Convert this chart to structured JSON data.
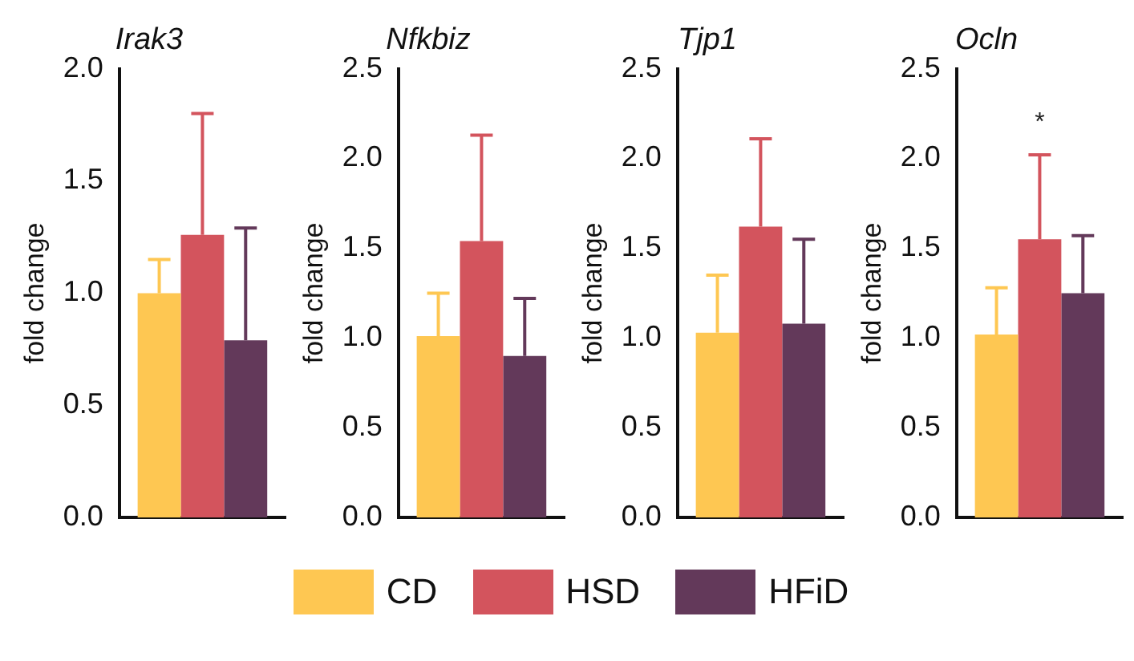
{
  "chart_data": [
    {
      "type": "bar",
      "title": "Irak3",
      "ylabel": "fold change",
      "categories": [
        null
      ],
      "ylim": [
        0,
        2
      ],
      "yticks": [
        {
          "value": 0,
          "label": "0.0"
        },
        {
          "value": 0.5,
          "label": "0.5"
        },
        {
          "value": 1,
          "label": "1.0"
        },
        {
          "value": 1.5,
          "label": "1.5"
        },
        {
          "value": 2,
          "label": "2.0"
        }
      ],
      "grid": false,
      "legend": "bottom",
      "series": [
        {
          "name": "CD",
          "color": "#fec752",
          "values": [
            1.0
          ],
          "errors": [
            [
              1.0,
              1.15
            ]
          ]
        },
        {
          "name": "HSD",
          "color": "#d3545d",
          "values": [
            1.26
          ],
          "errors": [
            [
              1.26,
              1.8
            ]
          ]
        },
        {
          "name": "HFiD",
          "color": "#63395a",
          "values": [
            0.79
          ],
          "errors": [
            [
              0.79,
              1.29
            ]
          ]
        }
      ]
    },
    {
      "type": "bar",
      "title": "Nfkbiz",
      "ylabel": "fold change",
      "categories": [
        null
      ],
      "ylim": [
        0,
        2.5
      ],
      "yticks": [
        {
          "value": 0,
          "label": "0.0"
        },
        {
          "value": 0.5,
          "label": "0.5"
        },
        {
          "value": 1,
          "label": "1.0"
        },
        {
          "value": 1.5,
          "label": "1.5"
        },
        {
          "value": 2,
          "label": "2.0"
        },
        {
          "value": 2.5,
          "label": "2.5"
        }
      ],
      "grid": false,
      "series": [
        {
          "color": "#fec752",
          "values": [
            1.01
          ],
          "errors": [
            [
              1.01,
              1.25
            ]
          ]
        },
        {
          "color": "#d3545d",
          "values": [
            1.54
          ],
          "errors": [
            [
              1.54,
              2.13
            ]
          ]
        },
        {
          "color": "#63395a",
          "values": [
            0.9
          ],
          "errors": [
            [
              0.9,
              1.22
            ]
          ]
        }
      ]
    },
    {
      "type": "bar",
      "title": "Tjp1",
      "ylabel": "fold change",
      "categories": [
        null
      ],
      "ylim": [
        0,
        2.5
      ],
      "yticks": [
        {
          "value": 0,
          "label": "0.0"
        },
        {
          "value": 0.5,
          "label": "0.5"
        },
        {
          "value": 1,
          "label": "1.0"
        },
        {
          "value": 1.5,
          "label": "1.5"
        },
        {
          "value": 2,
          "label": "2.0"
        },
        {
          "value": 2.5,
          "label": "2.5"
        }
      ],
      "grid": false,
      "series": [
        {
          "color": "#fec752",
          "values": [
            1.03
          ],
          "errors": [
            [
              1.03,
              1.35
            ]
          ]
        },
        {
          "color": "#d3545d",
          "values": [
            1.62
          ],
          "errors": [
            [
              1.62,
              2.11
            ]
          ]
        },
        {
          "color": "#63395a",
          "values": [
            1.08
          ],
          "errors": [
            [
              1.08,
              1.55
            ]
          ]
        }
      ]
    },
    {
      "type": "bar",
      "title": "Ocln",
      "ylabel": "fold change",
      "categories": [
        null
      ],
      "ylim": [
        0,
        2.5
      ],
      "yticks": [
        {
          "value": 0,
          "label": "0.0"
        },
        {
          "value": 0.5,
          "label": "0.5"
        },
        {
          "value": 1,
          "label": "1.0"
        },
        {
          "value": 1.5,
          "label": "1.5"
        },
        {
          "value": 2,
          "label": "2.0"
        },
        {
          "value": 2.5,
          "label": "2.5"
        }
      ],
      "grid": false,
      "annotations": [
        "*"
      ],
      "series": [
        {
          "color": "#fec752",
          "values": [
            1.02
          ],
          "errors": [
            [
              1.02,
              1.28
            ]
          ]
        },
        {
          "color": "#d3545d",
          "values": [
            1.55
          ],
          "errors": [
            [
              1.55,
              2.02
            ]
          ]
        },
        {
          "color": "#63395a",
          "values": [
            1.25
          ],
          "errors": [
            [
              1.25,
              1.57
            ]
          ]
        }
      ]
    }
  ]
}
